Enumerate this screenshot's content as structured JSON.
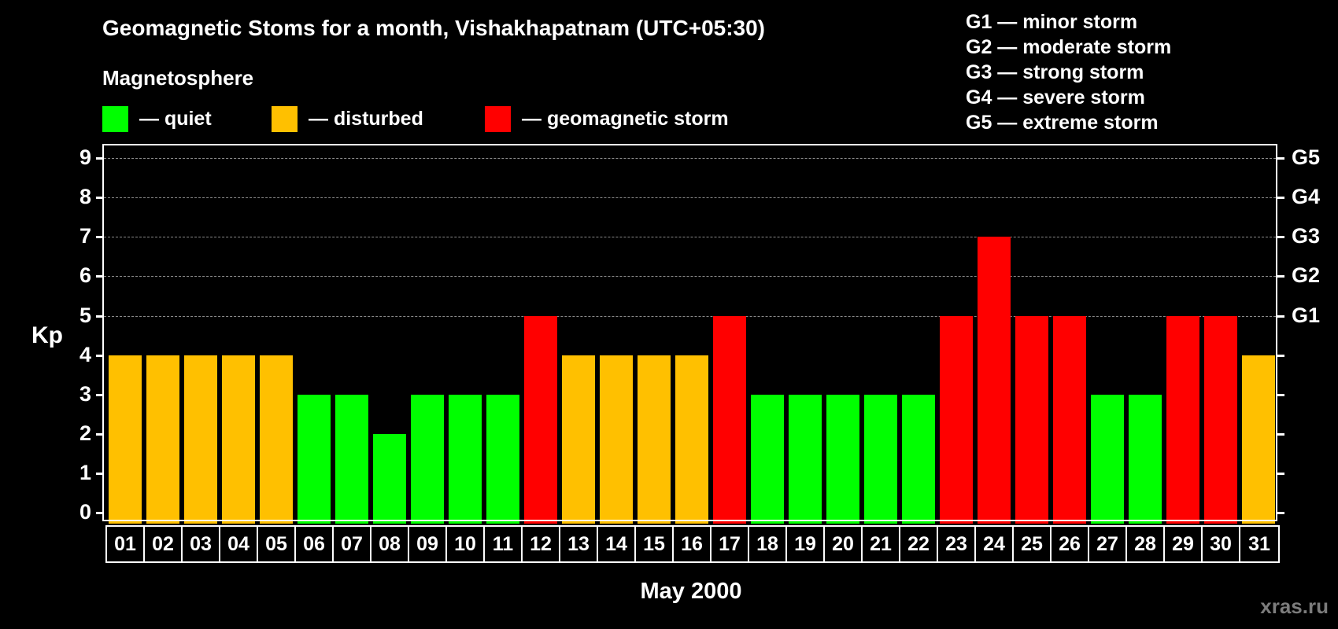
{
  "title": "Geomagnetic Stoms for a month, Vishakhapatnam (UTC+05:30)",
  "legend": {
    "heading": "Magnetosphere",
    "items": [
      {
        "label": "— quiet",
        "color": "#00ff00"
      },
      {
        "label": "— disturbed",
        "color": "#ffc000"
      },
      {
        "label": "— geomagnetic storm",
        "color": "#ff0000"
      }
    ]
  },
  "storm_scale": [
    "G1 — minor storm",
    "G2 — moderate storm",
    "G3 — strong storm",
    "G4 — severe storm",
    "G5 — extreme storm"
  ],
  "watermark": "xras.ru",
  "chart_data": {
    "type": "bar",
    "title": "Geomagnetic Stoms for a month, Vishakhapatnam (UTC+05:30)",
    "xlabel": "May 2000",
    "ylabel": "Kp",
    "ylim": [
      0,
      9
    ],
    "yticks": [
      0,
      1,
      2,
      3,
      4,
      5,
      6,
      7,
      8,
      9
    ],
    "right_ticks": [
      {
        "value": 5,
        "label": "G1"
      },
      {
        "value": 6,
        "label": "G2"
      },
      {
        "value": 7,
        "label": "G3"
      },
      {
        "value": 8,
        "label": "G4"
      },
      {
        "value": 9,
        "label": "G5"
      }
    ],
    "grid": {
      "y_dashed_from": 5,
      "y_dashed_to": 9
    },
    "legend_position": "top",
    "categories": [
      "01",
      "02",
      "03",
      "04",
      "05",
      "06",
      "07",
      "08",
      "09",
      "10",
      "11",
      "12",
      "13",
      "14",
      "15",
      "16",
      "17",
      "18",
      "19",
      "20",
      "21",
      "22",
      "23",
      "24",
      "25",
      "26",
      "27",
      "28",
      "29",
      "30",
      "31"
    ],
    "values": [
      4,
      4,
      4,
      4,
      4,
      3,
      3,
      2,
      3,
      3,
      3,
      5,
      4,
      4,
      4,
      4,
      5,
      3,
      3,
      3,
      3,
      3,
      5,
      7,
      5,
      5,
      3,
      3,
      5,
      5,
      4
    ],
    "status": [
      "disturbed",
      "disturbed",
      "disturbed",
      "disturbed",
      "disturbed",
      "quiet",
      "quiet",
      "quiet",
      "quiet",
      "quiet",
      "quiet",
      "storm",
      "disturbed",
      "disturbed",
      "disturbed",
      "disturbed",
      "storm",
      "quiet",
      "quiet",
      "quiet",
      "quiet",
      "quiet",
      "storm",
      "storm",
      "storm",
      "storm",
      "quiet",
      "quiet",
      "storm",
      "storm",
      "disturbed"
    ],
    "colors": {
      "quiet": "#00ff00",
      "disturbed": "#ffc000",
      "storm": "#ff0000"
    }
  }
}
